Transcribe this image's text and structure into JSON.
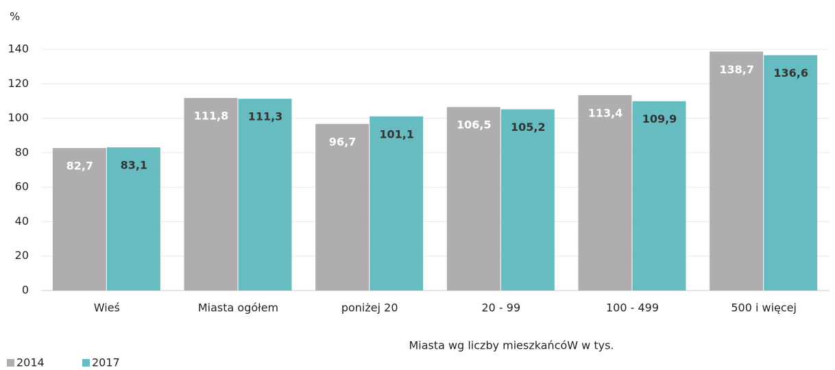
{
  "chart_data": {
    "type": "bar",
    "y_unit": "%",
    "x_label": "Miasta wg liczby mieszkańcóW w tys.",
    "categories": [
      "Wieś",
      "Miasta ogółem",
      "poniżej 20",
      "20 - 99",
      "100 - 499",
      "500 i więcej"
    ],
    "series": [
      {
        "name": "2014",
        "color": "#afadaf",
        "label_color": "#ffffff",
        "values": [
          82.7,
          111.8,
          96.7,
          106.5,
          113.4,
          138.7
        ],
        "value_labels": [
          "82,7",
          "111,8",
          "96,7",
          "106,5",
          "113,4",
          "138,7"
        ]
      },
      {
        "name": "2017",
        "color": "#67bcc2",
        "label_color": "#333333",
        "values": [
          83.1,
          111.3,
          101.1,
          105.2,
          109.9,
          136.6
        ],
        "value_labels": [
          "83,1",
          "111,3",
          "101,1",
          "105,2",
          "109,9",
          "136,6"
        ]
      }
    ],
    "ylim": [
      0,
      140
    ],
    "yticks": [
      0,
      20,
      40,
      60,
      80,
      100,
      120,
      140
    ],
    "grid": true,
    "legend": "bottom-left"
  }
}
